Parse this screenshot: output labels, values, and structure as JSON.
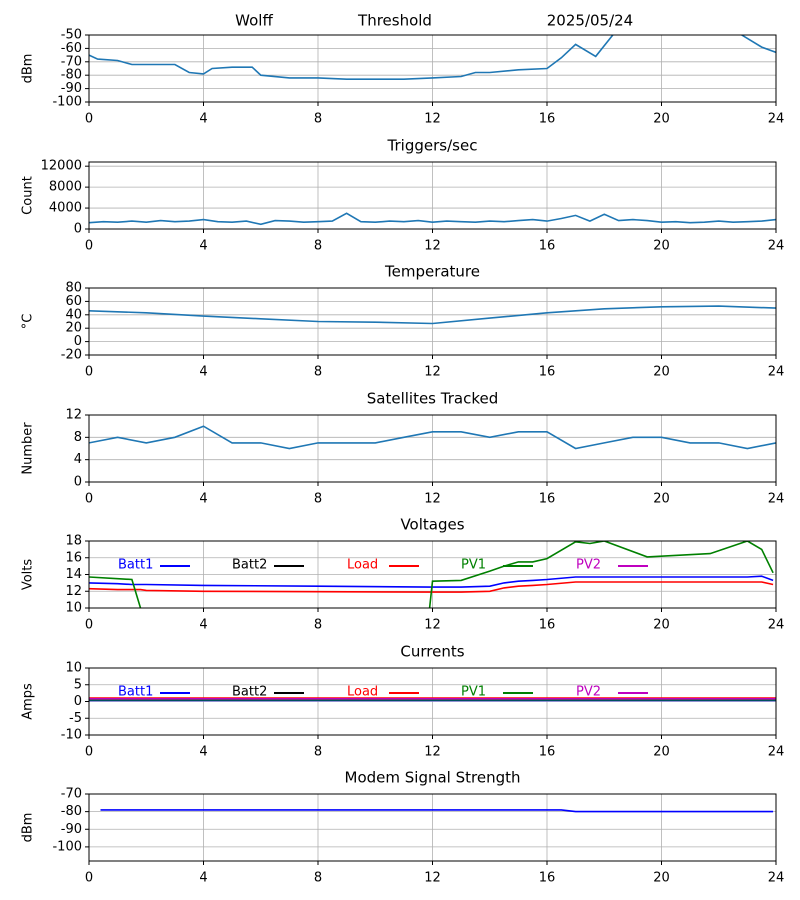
{
  "chart_data": [
    {
      "type": "line",
      "annotations": [
        "Wolff",
        "Threshold",
        "2025/05/24"
      ],
      "ylabel": "dBm",
      "x": [
        0,
        0.3,
        1,
        1.5,
        3,
        3.5,
        4,
        4.3,
        5,
        5.7,
        6,
        7,
        8,
        9,
        11,
        12,
        13,
        13.5,
        14,
        15,
        16,
        16.5,
        17,
        17.7,
        18.3,
        20,
        22.8,
        23.5,
        24
      ],
      "series": [
        {
          "color": "#1f77b4",
          "values": [
            -65,
            -68,
            -69,
            -72,
            -72,
            -78,
            -79,
            -75,
            -74,
            -74,
            -80,
            -82,
            -82,
            -83,
            -83,
            -82,
            -81,
            -78,
            -78,
            -76,
            -75,
            -67,
            -57,
            -66,
            -50,
            null,
            -50,
            -59,
            -63
          ]
        }
      ],
      "xlim": [
        0,
        24
      ],
      "xticks": [
        0,
        4,
        8,
        12,
        16,
        20,
        24
      ],
      "ylim": [
        -100,
        -50
      ],
      "yticks": [
        -100,
        -90,
        -80,
        -70,
        -60,
        -50
      ],
      "grid": true
    },
    {
      "type": "line",
      "title": "Triggers/sec",
      "ylabel": "Count",
      "x": [
        0,
        0.5,
        1,
        1.5,
        2,
        2.5,
        3,
        3.5,
        4,
        4.5,
        5,
        5.5,
        6,
        6.5,
        7,
        7.5,
        8,
        8.5,
        9,
        9.5,
        10,
        10.5,
        11,
        11.5,
        12,
        12.5,
        13,
        13.5,
        14,
        14.5,
        15,
        15.5,
        16,
        16.5,
        17,
        17.5,
        18,
        18.5,
        19,
        19.5,
        20,
        20.5,
        21,
        21.5,
        22,
        22.5,
        23,
        23.5,
        24
      ],
      "series": [
        {
          "color": "#1f77b4",
          "values": [
            1200,
            1400,
            1300,
            1500,
            1300,
            1600,
            1400,
            1500,
            1800,
            1400,
            1300,
            1500,
            900,
            1600,
            1500,
            1300,
            1400,
            1500,
            3000,
            1400,
            1300,
            1500,
            1400,
            1600,
            1300,
            1500,
            1400,
            1300,
            1500,
            1400,
            1600,
            1800,
            1500,
            2000,
            2600,
            1500,
            2800,
            1600,
            1800,
            1600,
            1300,
            1400,
            1200,
            1300,
            1500,
            1300,
            1400,
            1500,
            1800
          ]
        }
      ],
      "xlim": [
        0,
        24
      ],
      "xticks": [
        0,
        4,
        8,
        12,
        16,
        20,
        24
      ],
      "ylim": [
        0,
        12800
      ],
      "yticks": [
        0,
        4000,
        8000,
        12000
      ],
      "grid": true
    },
    {
      "type": "line",
      "title": "Temperature",
      "ylabel": "°C",
      "x": [
        0,
        2,
        4,
        6,
        8,
        10,
        12,
        14,
        16,
        18,
        20,
        22,
        24
      ],
      "series": [
        {
          "color": "#1f77b4",
          "values": [
            46,
            43,
            38,
            34,
            30,
            29,
            27,
            35,
            43,
            49,
            52,
            53,
            50
          ]
        }
      ],
      "xlim": [
        0,
        24
      ],
      "xticks": [
        0,
        4,
        8,
        12,
        16,
        20,
        24
      ],
      "ylim": [
        -20,
        80
      ],
      "yticks": [
        -20,
        0,
        20,
        40,
        60,
        80
      ],
      "grid": true
    },
    {
      "type": "line",
      "title": "Satellites Tracked",
      "ylabel": "Number",
      "x": [
        0,
        1,
        2,
        3,
        4,
        5,
        6,
        7,
        8,
        9,
        10,
        11,
        12,
        13,
        14,
        15,
        16,
        17,
        18,
        19,
        20,
        21,
        22,
        23,
        24
      ],
      "series": [
        {
          "color": "#1f77b4",
          "values": [
            7,
            8,
            7,
            8,
            10,
            7,
            7,
            6,
            7,
            7,
            7,
            8,
            9,
            9,
            8,
            9,
            9,
            6,
            7,
            8,
            8,
            7,
            7,
            6,
            7
          ]
        }
      ],
      "xlim": [
        0,
        24
      ],
      "xticks": [
        0,
        4,
        8,
        12,
        16,
        20,
        24
      ],
      "ylim": [
        0,
        12
      ],
      "yticks": [
        0,
        4,
        8,
        12
      ],
      "grid": true
    },
    {
      "type": "line",
      "title": "Voltages",
      "ylabel": "Volts",
      "x": [
        0,
        1,
        1.5,
        1.8,
        2,
        4,
        8,
        11.9,
        12,
        13,
        14,
        14.5,
        15,
        15.5,
        16,
        17,
        17.5,
        18,
        19.5,
        21.7,
        23,
        23.5,
        23.9
      ],
      "series": [
        {
          "name": "Batt1",
          "color": "#0000ff",
          "values": [
            13,
            12.9,
            12.8,
            12.8,
            12.8,
            12.7,
            12.6,
            12.5,
            12.5,
            12.5,
            12.6,
            13.0,
            13.2,
            13.3,
            13.4,
            13.7,
            13.7,
            13.7,
            13.7,
            13.7,
            13.7,
            13.8,
            13.3
          ]
        },
        {
          "name": "Batt2",
          "color": "#000000",
          "values": [
            null,
            null,
            null,
            null,
            null,
            null,
            null,
            null,
            null,
            null,
            null,
            null,
            null,
            null,
            null,
            null,
            null,
            null,
            null,
            null,
            null,
            null,
            null
          ]
        },
        {
          "name": "Load",
          "color": "#ff0000",
          "values": [
            12.3,
            12.2,
            12.2,
            12.2,
            12.1,
            12.0,
            11.95,
            11.9,
            11.9,
            11.9,
            12.0,
            12.4,
            12.6,
            12.7,
            12.8,
            13.1,
            13.1,
            13.1,
            13.1,
            13.1,
            13.1,
            13.1,
            12.8
          ]
        },
        {
          "name": "PV1",
          "color": "#008000",
          "values": [
            13.7,
            13.5,
            13.4,
            10.0,
            null,
            null,
            null,
            10.0,
            13.2,
            13.3,
            14.4,
            15.0,
            15.5,
            15.5,
            15.9,
            17.9,
            17.7,
            18.0,
            16.1,
            16.5,
            18.0,
            17.0,
            14.2
          ]
        },
        {
          "name": "PV2",
          "color": "#bf00bf",
          "values": [
            null,
            null,
            null,
            null,
            null,
            null,
            null,
            null,
            null,
            null,
            null,
            null,
            null,
            null,
            null,
            null,
            null,
            null,
            null,
            null,
            null,
            null,
            null
          ]
        }
      ],
      "xlim": [
        0,
        24
      ],
      "xticks": [
        0,
        4,
        8,
        12,
        16,
        20,
        24
      ],
      "ylim": [
        10,
        18
      ],
      "yticks": [
        10,
        12,
        14,
        16,
        18
      ],
      "grid": true
    },
    {
      "type": "line",
      "title": "Currents",
      "ylabel": "Amps",
      "x": [
        0,
        24
      ],
      "series": [
        {
          "name": "Batt1",
          "color": "#0000ff",
          "values": [
            0.3,
            0.3
          ]
        },
        {
          "name": "Batt2",
          "color": "#000000",
          "values": [
            null,
            null
          ]
        },
        {
          "name": "Load",
          "color": "#ff0000",
          "values": [
            1.0,
            1.0
          ]
        },
        {
          "name": "PV1",
          "color": "#008000",
          "values": [
            0.5,
            0.5
          ]
        },
        {
          "name": "PV2",
          "color": "#bf00bf",
          "values": [
            0.8,
            0.8
          ]
        }
      ],
      "xlim": [
        0,
        24
      ],
      "xticks": [
        0,
        4,
        8,
        12,
        16,
        20,
        24
      ],
      "ylim": [
        -10,
        10
      ],
      "yticks": [
        -10,
        -5,
        0,
        5,
        10
      ],
      "grid": true
    },
    {
      "type": "line",
      "title": "Modem Signal Strength",
      "ylabel": "dBm",
      "x": [
        0.4,
        16.5,
        17,
        23.9
      ],
      "series": [
        {
          "color": "#0000ff",
          "values": [
            -79,
            -79,
            -80,
            -80
          ]
        }
      ],
      "xlim": [
        0,
        24
      ],
      "xticks": [
        0,
        4,
        8,
        12,
        16,
        20,
        24
      ],
      "ylim": [
        -108,
        -70
      ],
      "yticks": [
        -100,
        -90,
        -80,
        -70
      ],
      "grid": true
    }
  ]
}
